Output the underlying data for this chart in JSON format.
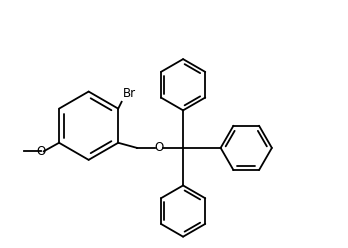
{
  "bg_color": "#ffffff",
  "line_color": "#000000",
  "line_width": 1.3,
  "font_size": 8.5,
  "fig_width": 3.48,
  "fig_height": 2.48,
  "dpi": 100,
  "xlim": [
    0,
    10
  ],
  "ylim": [
    0,
    7.1
  ]
}
